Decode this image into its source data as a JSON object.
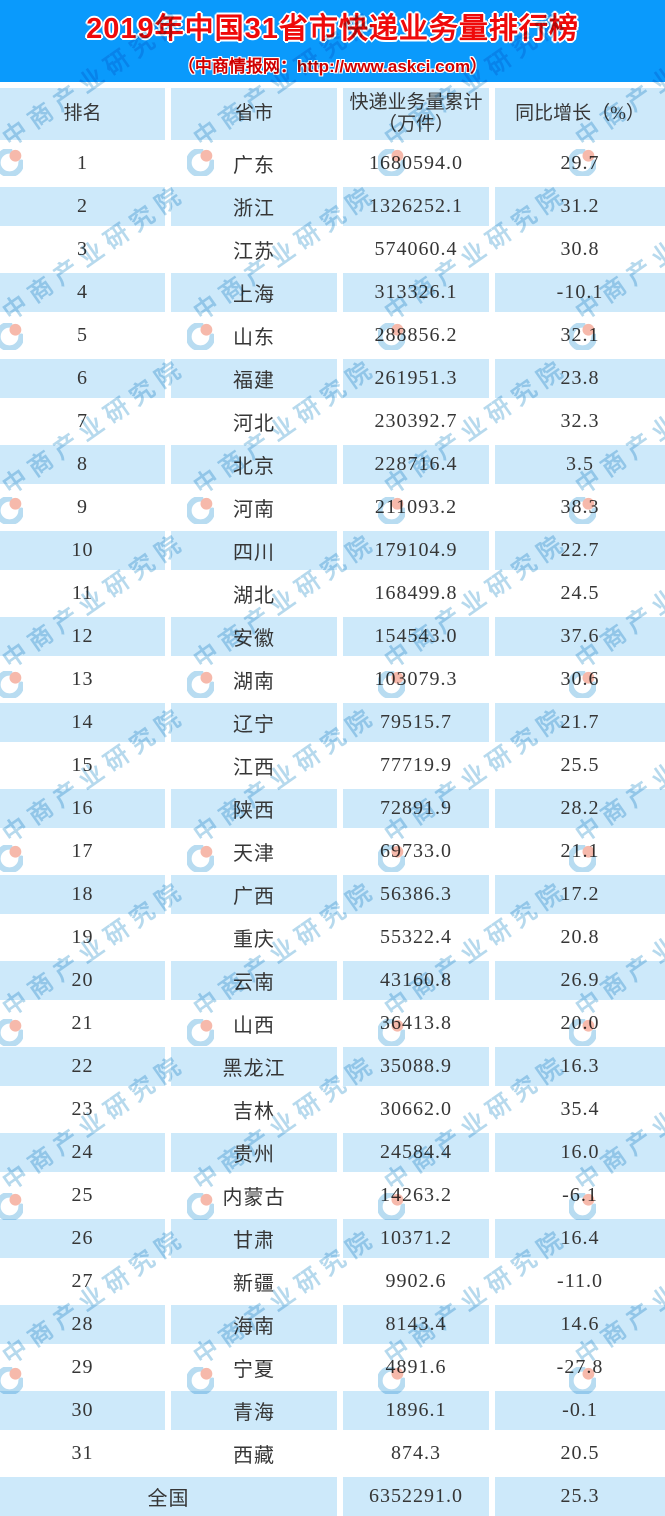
{
  "banner": {
    "title": "2019年中国31省市快递业务量排行榜",
    "subtitle": "（中商情报网：http://www.askci.com）"
  },
  "table": {
    "header_display": [
      "排名",
      "省市",
      "快递业务量累计\n（万件）",
      "同比增长（%）"
    ]
  },
  "chart_data": {
    "type": "table",
    "title": "2019年中国31省市快递业务量排行榜",
    "source_note": "（中商情报网：http://www.askci.com）",
    "columns": [
      "排名",
      "省市",
      "快递业务量累计（万件）",
      "同比增长（%）"
    ],
    "rows": [
      [
        1,
        "广东",
        1680594.0,
        29.7
      ],
      [
        2,
        "浙江",
        1326252.1,
        31.2
      ],
      [
        3,
        "江苏",
        574060.4,
        30.8
      ],
      [
        4,
        "上海",
        313326.1,
        -10.1
      ],
      [
        5,
        "山东",
        288856.2,
        32.1
      ],
      [
        6,
        "福建",
        261951.3,
        23.8
      ],
      [
        7,
        "河北",
        230392.7,
        32.3
      ],
      [
        8,
        "北京",
        228716.4,
        3.5
      ],
      [
        9,
        "河南",
        211093.2,
        38.3
      ],
      [
        10,
        "四川",
        179104.9,
        22.7
      ],
      [
        11,
        "湖北",
        168499.8,
        24.5
      ],
      [
        12,
        "安徽",
        154543.0,
        37.6
      ],
      [
        13,
        "湖南",
        103079.3,
        30.6
      ],
      [
        14,
        "辽宁",
        79515.7,
        21.7
      ],
      [
        15,
        "江西",
        77719.9,
        25.5
      ],
      [
        16,
        "陕西",
        72891.9,
        28.2
      ],
      [
        17,
        "天津",
        69733.0,
        21.1
      ],
      [
        18,
        "广西",
        56386.3,
        17.2
      ],
      [
        19,
        "重庆",
        55322.4,
        20.8
      ],
      [
        20,
        "云南",
        43160.8,
        26.9
      ],
      [
        21,
        "山西",
        36413.8,
        20.0
      ],
      [
        22,
        "黑龙江",
        35088.9,
        16.3
      ],
      [
        23,
        "吉林",
        30662.0,
        35.4
      ],
      [
        24,
        "贵州",
        24584.4,
        16.0
      ],
      [
        25,
        "内蒙古",
        14263.2,
        -6.1
      ],
      [
        26,
        "甘肃",
        10371.2,
        16.4
      ],
      [
        27,
        "新疆",
        9902.6,
        -11.0
      ],
      [
        28,
        "海南",
        8143.4,
        14.6
      ],
      [
        29,
        "宁夏",
        4891.6,
        -27.8
      ],
      [
        30,
        "青海",
        1896.1,
        -0.1
      ],
      [
        31,
        "西藏",
        874.3,
        20.5
      ]
    ],
    "total_row": {
      "label": "全国",
      "volume": 6352291.0,
      "growth": 25.3
    }
  },
  "watermark": {
    "text": "中商产业研究院",
    "logo": "askci-pie-logo"
  },
  "colors": {
    "banner_blue": "#0a9afc",
    "row_blue": "#cde9fa",
    "title_red": "#ef0a0a",
    "subtitle_red": "#d00000",
    "text_dark": "#363636",
    "watermark_blue": "#6fb3dc",
    "logo_orange": "#ee8066",
    "logo_blue": "#7fbfe5"
  }
}
